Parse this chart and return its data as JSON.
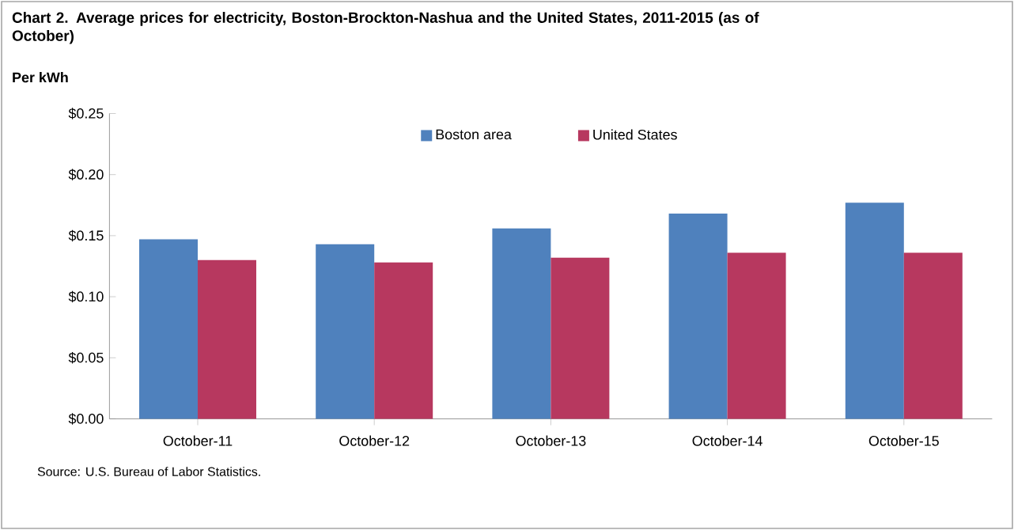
{
  "chart_data": {
    "type": "bar",
    "title": "Chart 2. Average prices for electricity, Boston-Brockton-Nashua  and the United States, 2011-2015 (as of October)",
    "ylabel": "Per kWh",
    "categories": [
      "October-11",
      "October-12",
      "October-13",
      "October-14",
      "October-15"
    ],
    "series": [
      {
        "name": "Boston area",
        "color": "#4f81bd",
        "values": [
          0.147,
          0.143,
          0.156,
          0.168,
          0.177
        ]
      },
      {
        "name": "United States",
        "color": "#b7385f",
        "values": [
          0.13,
          0.128,
          0.132,
          0.136,
          0.136
        ]
      }
    ],
    "ylim": [
      0,
      0.25
    ],
    "yticks": [
      {
        "value": 0,
        "label": "$0.00"
      },
      {
        "value": 0.05,
        "label": "$0.05"
      },
      {
        "value": 0.1,
        "label": "$0.10"
      },
      {
        "value": 0.15,
        "label": "$0.15"
      },
      {
        "value": 0.2,
        "label": "$0.20"
      },
      {
        "value": 0.25,
        "label": "$0.25"
      }
    ],
    "grid": false,
    "legend": "top",
    "annotations": [
      "Source: U.S. Bureau of Labor Statistics."
    ]
  }
}
